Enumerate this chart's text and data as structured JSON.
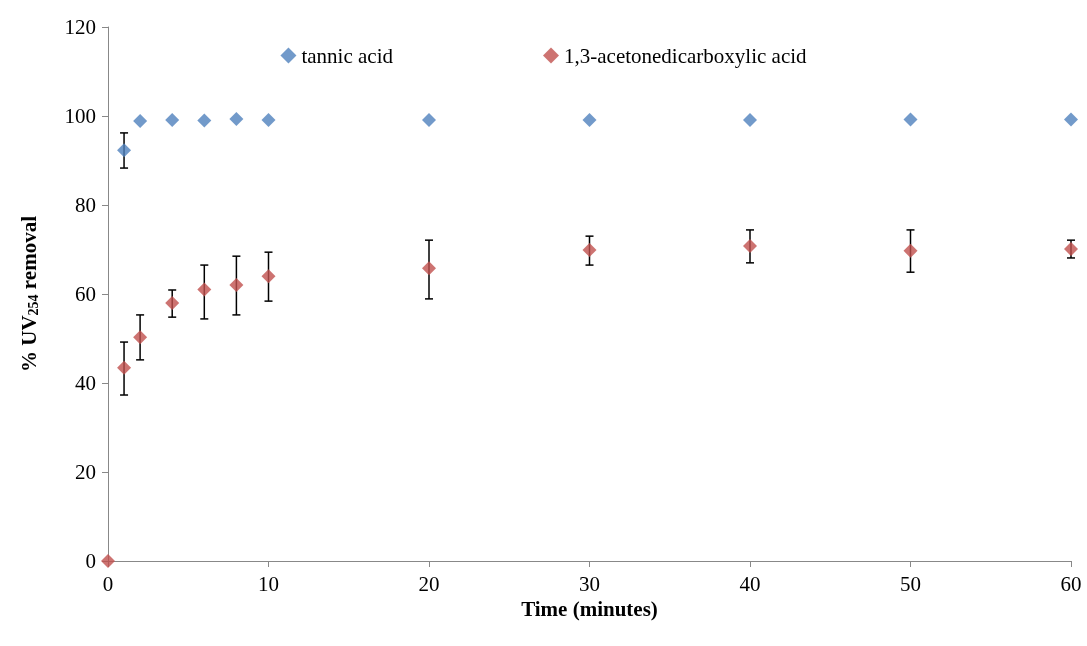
{
  "chart_data": {
    "type": "scatter",
    "xlabel": "Time (minutes)",
    "ylabel": "% UV$_{254}$ removal",
    "xlim": [
      0,
      60
    ],
    "xticks": [
      0,
      10,
      20,
      30,
      40,
      50,
      60
    ],
    "ylim": [
      0,
      120
    ],
    "yticks": [
      0,
      20,
      40,
      60,
      80,
      100,
      120
    ],
    "grid": false,
    "legend": "top",
    "marker": "diamond",
    "series": [
      {
        "name": "tannic acid",
        "color": "#4f81bd",
        "x": [
          1,
          2,
          4,
          6,
          8,
          10,
          20,
          30,
          40,
          50,
          60
        ],
        "values": [
          92.3,
          98.9,
          99.1,
          99.0,
          99.3,
          99.1,
          99.1,
          99.1,
          99.1,
          99.2,
          99.2
        ],
        "errors": [
          [
            88.3,
            96.2
          ],
          null,
          null,
          null,
          null,
          null,
          null,
          null,
          null,
          null,
          null
        ]
      },
      {
        "name": "1,3-acetonedicarboxylic acid",
        "color": "#c0504d",
        "x": [
          0,
          1,
          2,
          4,
          6,
          8,
          10,
          20,
          30,
          40,
          50,
          60
        ],
        "values": [
          0,
          43.4,
          50.3,
          58.0,
          61.0,
          62.0,
          64.0,
          65.8,
          69.9,
          70.8,
          69.7,
          70.1
        ],
        "errors": [
          null,
          [
            37.3,
            49.2
          ],
          [
            45.2,
            55.3
          ],
          [
            54.8,
            60.9
          ],
          [
            54.4,
            66.5
          ],
          [
            55.3,
            68.5
          ],
          [
            58.4,
            69.4
          ],
          [
            58.9,
            72.1
          ],
          [
            66.5,
            73.0
          ],
          [
            67.0,
            74.4
          ],
          [
            64.9,
            74.4
          ],
          [
            68.1,
            72.1
          ]
        ]
      }
    ]
  }
}
